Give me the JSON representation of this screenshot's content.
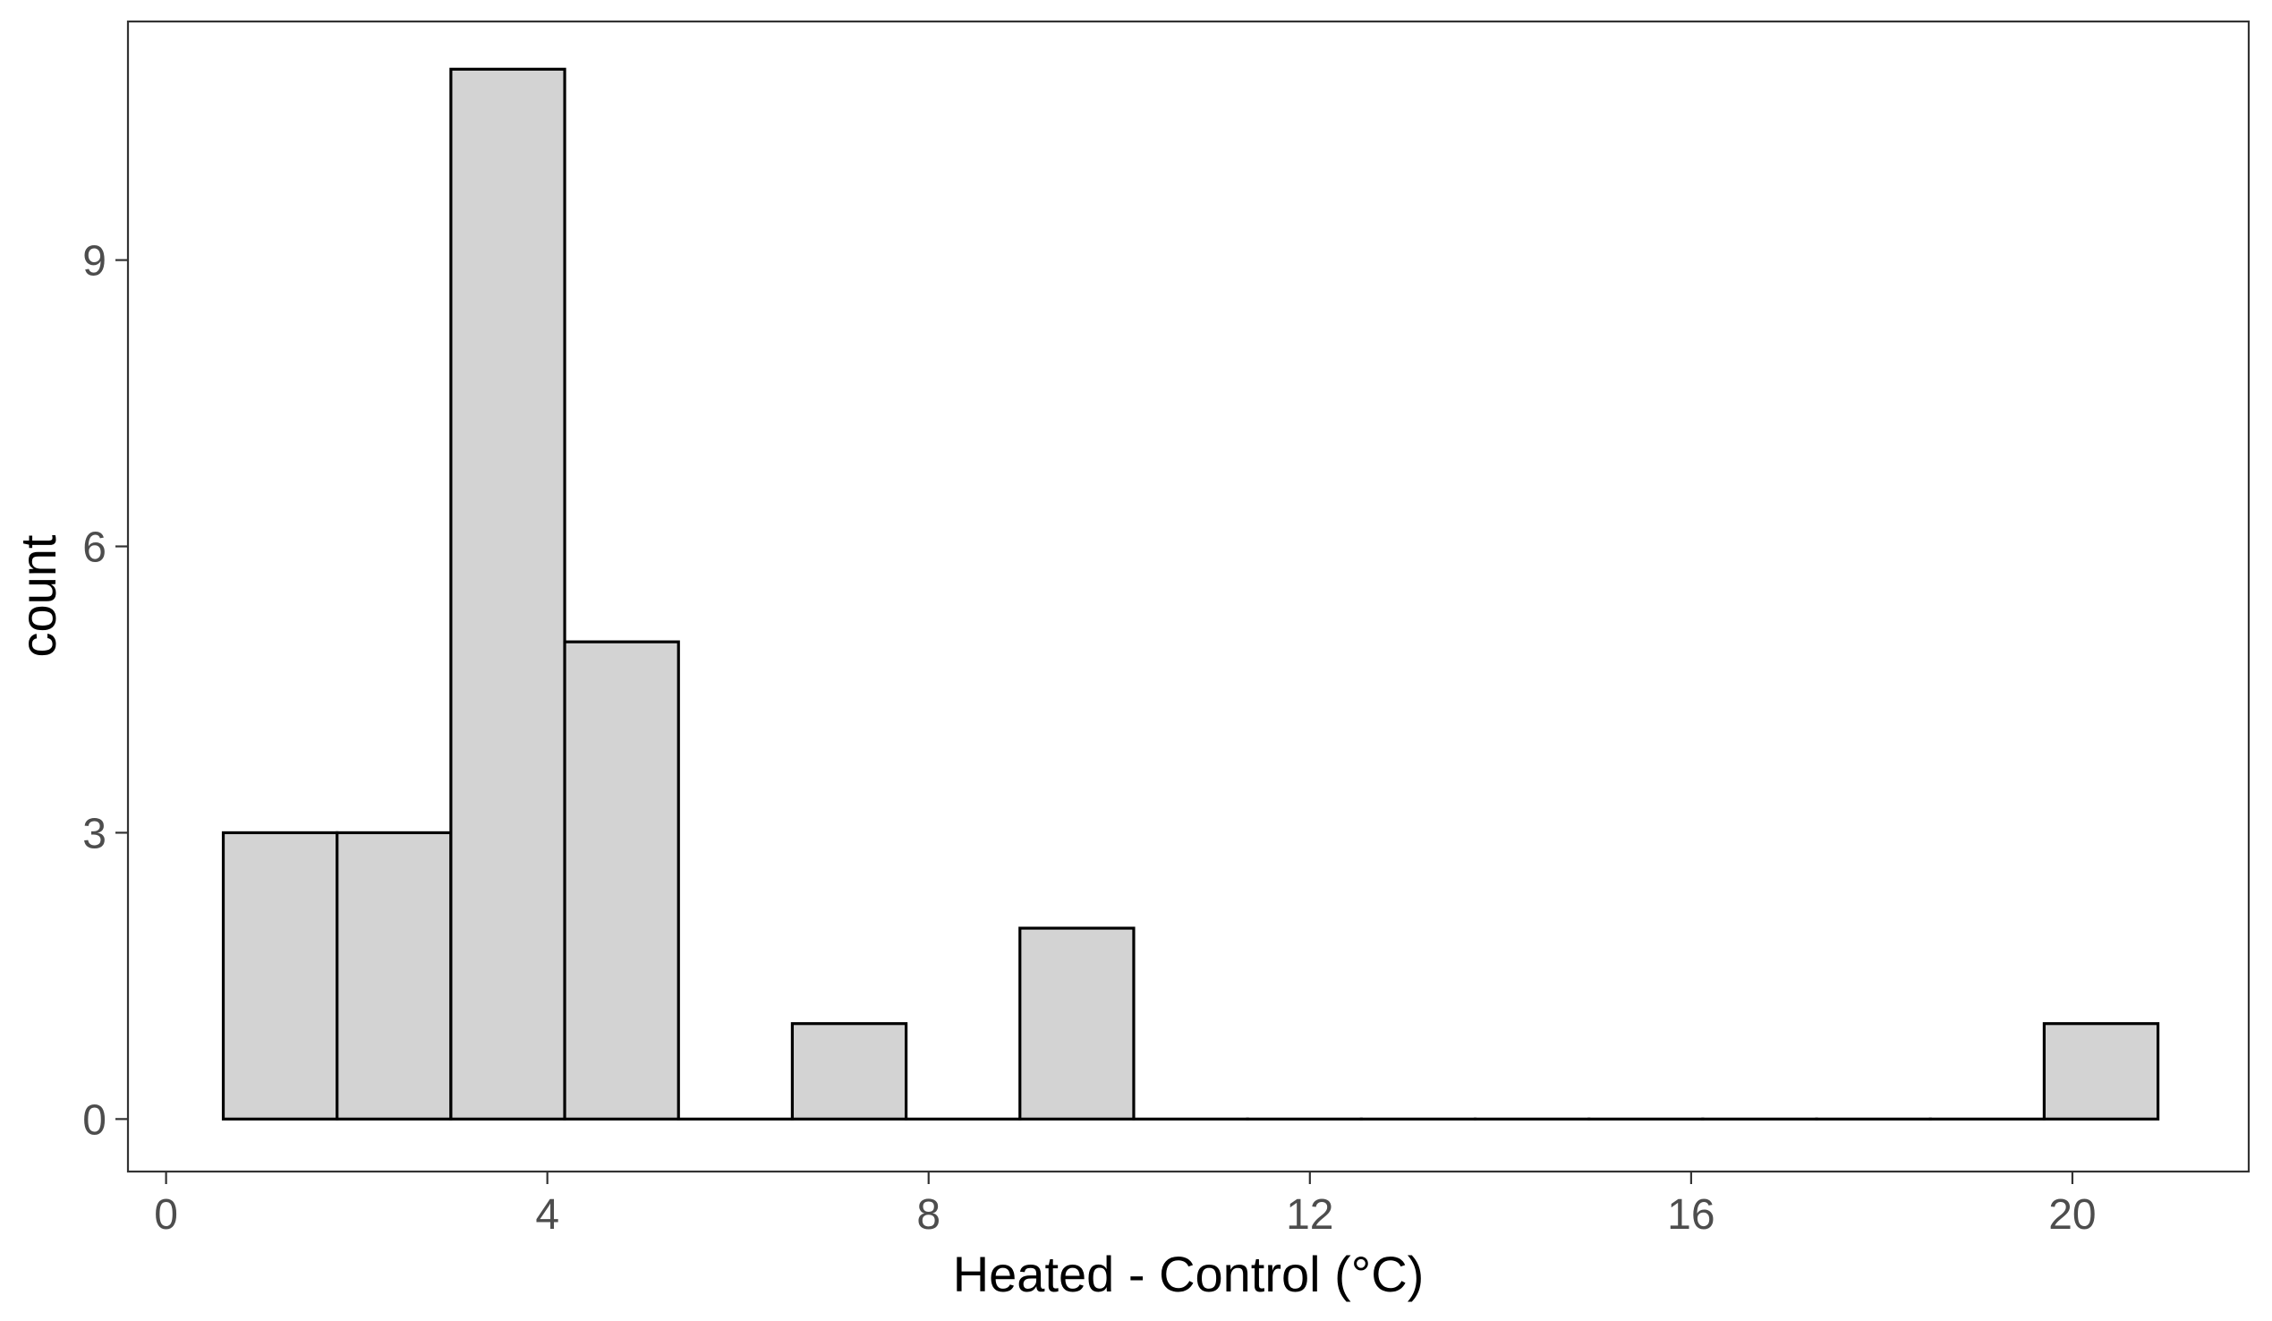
{
  "chart_data": {
    "type": "bar",
    "subtype": "histogram",
    "title": "",
    "xlabel": "Heated - Control (°C)",
    "ylabel": "count",
    "xlim": [
      -0.4,
      21.85
    ],
    "ylim": [
      -0.55,
      11.5
    ],
    "x_ticks": [
      0,
      4,
      8,
      12,
      16,
      20
    ],
    "y_ticks": [
      0,
      3,
      6,
      9
    ],
    "bin_width": 1.194,
    "bin_start": 0.6,
    "bins": [
      {
        "x0": 0.6,
        "x1": 1.794,
        "count": 3
      },
      {
        "x0": 1.794,
        "x1": 2.988,
        "count": 3
      },
      {
        "x0": 2.988,
        "x1": 4.182,
        "count": 11
      },
      {
        "x0": 4.182,
        "x1": 5.376,
        "count": 5
      },
      {
        "x0": 5.376,
        "x1": 6.57,
        "count": 0
      },
      {
        "x0": 6.57,
        "x1": 7.764,
        "count": 1
      },
      {
        "x0": 7.764,
        "x1": 8.958,
        "count": 0
      },
      {
        "x0": 8.958,
        "x1": 10.152,
        "count": 2
      },
      {
        "x0": 10.152,
        "x1": 11.346,
        "count": 0
      },
      {
        "x0": 11.346,
        "x1": 12.54,
        "count": 0
      },
      {
        "x0": 12.54,
        "x1": 13.734,
        "count": 0
      },
      {
        "x0": 13.734,
        "x1": 14.928,
        "count": 0
      },
      {
        "x0": 14.928,
        "x1": 16.122,
        "count": 0
      },
      {
        "x0": 16.122,
        "x1": 17.316,
        "count": 0
      },
      {
        "x0": 17.316,
        "x1": 18.51,
        "count": 0
      },
      {
        "x0": 18.51,
        "x1": 19.704,
        "count": 0
      },
      {
        "x0": 19.704,
        "x1": 20.898,
        "count": 1
      }
    ],
    "grid": false,
    "legend": "none",
    "colors": {
      "bar_fill": "#d3d3d3",
      "bar_stroke": "#000000",
      "panel_border": "#333333",
      "tick_text": "#4d4d4d"
    }
  }
}
